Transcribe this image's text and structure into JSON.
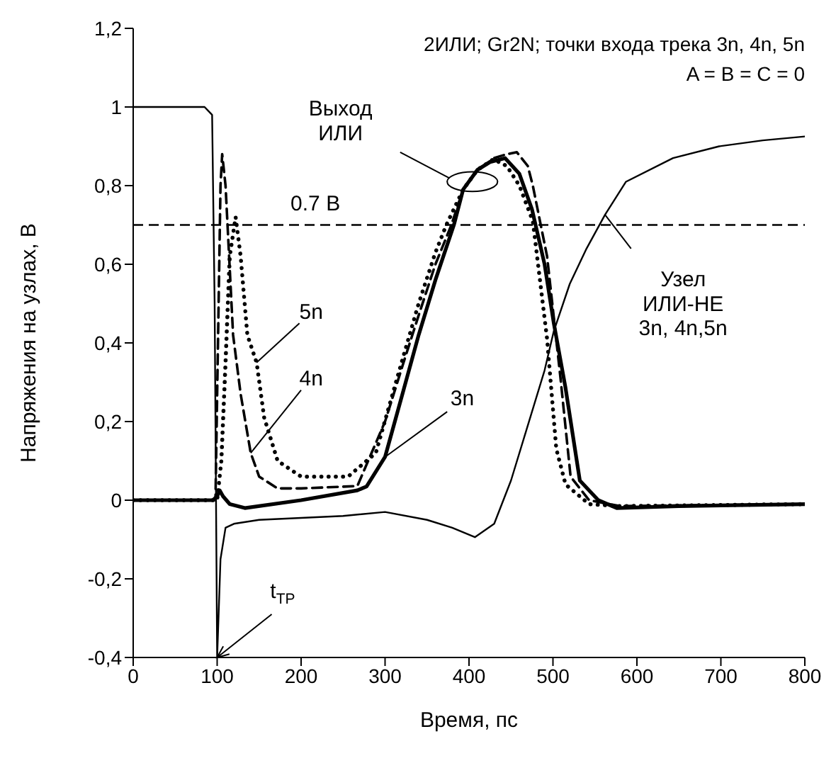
{
  "chart_data": {
    "type": "line",
    "xlabel": "Время, пс",
    "ylabel": "Напряжения на узлах, В",
    "xlim": [
      0,
      800
    ],
    "xticks": [
      0,
      100,
      200,
      300,
      400,
      500,
      600,
      700,
      800
    ],
    "ylim": [
      -0.4,
      1.2
    ],
    "yticks": [
      {
        "value": -0.4,
        "label": "-0,4"
      },
      {
        "value": -0.2,
        "label": "-0,2"
      },
      0,
      {
        "value": 0.2,
        "label": "0,2"
      },
      {
        "value": 0.4,
        "label": "0,4"
      },
      {
        "value": 0.6,
        "label": "0,6"
      },
      {
        "value": 0.8,
        "label": "0,8"
      },
      1,
      {
        "value": 1.2,
        "label": "1,2"
      }
    ],
    "grid": false,
    "marker": "none",
    "series": [
      {
        "color": "#000000",
        "line_style": "solid",
        "x": [
          0,
          85,
          94,
          97,
          100,
          104,
          110,
          120,
          150,
          200,
          250,
          300,
          350,
          380,
          407,
          430,
          450,
          470,
          490,
          501,
          520,
          540,
          562,
          587,
          643,
          698,
          750,
          800
        ],
        "values": [
          1,
          1,
          0.98,
          0.5,
          -0.4,
          -0.15,
          -0.07,
          -0.06,
          -0.05,
          -0.045,
          -0.04,
          -0.03,
          -0.05,
          -0.07,
          -0.094,
          -0.06,
          0.05,
          0.19,
          0.33,
          0.43,
          0.55,
          0.64,
          0.726,
          0.81,
          0.87,
          0.9,
          0.915,
          0.925
        ]
      },
      {
        "color": "#000000",
        "line_style": "solid",
        "x": [
          0,
          95,
          100,
          103,
          107,
          115,
          133,
          200,
          267,
          278,
          300,
          322,
          340,
          360,
          382,
          393,
          410,
          425,
          443,
          460,
          475,
          490,
          501,
          515,
          532,
          554,
          576,
          650,
          800
        ],
        "values": [
          0,
          0,
          0.01,
          0.025,
          0.01,
          -0.01,
          -0.02,
          0,
          0.025,
          0.035,
          0.11,
          0.28,
          0.42,
          0.56,
          0.7,
          0.79,
          0.84,
          0.86,
          0.87,
          0.83,
          0.74,
          0.6,
          0.45,
          0.285,
          0.05,
          0,
          -0.02,
          -0.015,
          -0.01
        ]
      },
      {
        "color": "#000000",
        "line_style": "dashed",
        "x": [
          0,
          98,
          101,
          104,
          106,
          110,
          119,
          128,
          140,
          150,
          172,
          200,
          267,
          300,
          322,
          340,
          360,
          379,
          393,
          410,
          430,
          445,
          457,
          470,
          476,
          493,
          509,
          521,
          543,
          580,
          800
        ],
        "values": [
          0,
          0,
          0.4,
          0.8,
          0.88,
          0.8,
          0.42,
          0.27,
          0.12,
          0.06,
          0.03,
          0.03,
          0.036,
          0.2,
          0.35,
          0.47,
          0.6,
          0.7,
          0.79,
          0.84,
          0.87,
          0.88,
          0.885,
          0.85,
          0.8,
          0.62,
          0.31,
          0.06,
          0,
          -0.015,
          -0.01
        ]
      },
      {
        "color": "#000000",
        "line_style": "dotted",
        "x": [
          0,
          100,
          105,
          110,
          115,
          122,
          128,
          136,
          147,
          156,
          172,
          200,
          256,
          289,
          317,
          340,
          360,
          373,
          393,
          410,
          429,
          445,
          460,
          476,
          493,
          504,
          515,
          543,
          580,
          800
        ],
        "values": [
          0,
          0,
          0.1,
          0.35,
          0.62,
          0.72,
          0.62,
          0.42,
          0.35,
          0.21,
          0.1,
          0.06,
          0.06,
          0.12,
          0.33,
          0.5,
          0.63,
          0.7,
          0.79,
          0.84,
          0.867,
          0.85,
          0.8,
          0.71,
          0.41,
          0.13,
          0.04,
          -0.01,
          -0.015,
          -0.01
        ]
      }
    ],
    "ref_lines": [
      {
        "axis": "y",
        "value": 0.7,
        "label": "0.7 В",
        "color": "#000000",
        "line_style": "dashed"
      }
    ],
    "annotations": [
      "2ИЛИ; Gr2N; точки входа трека 3n, 4n, 5n",
      "A = B = C = 0",
      "Выход\nИЛИ",
      {
        "text": "t$_{TP}$",
        "x": 100,
        "y": -0.4
      },
      {
        "text": "5n",
        "x": 147,
        "y": 0.35
      },
      {
        "text": "4n",
        "x": 140,
        "y": 0.12
      },
      {
        "text": "3n",
        "x": 300,
        "y": 0.11
      },
      {
        "text": "Узел\nИЛИ-НЕ\n3n, 4n,5n",
        "x": 562,
        "y": 0.726
      }
    ]
  }
}
